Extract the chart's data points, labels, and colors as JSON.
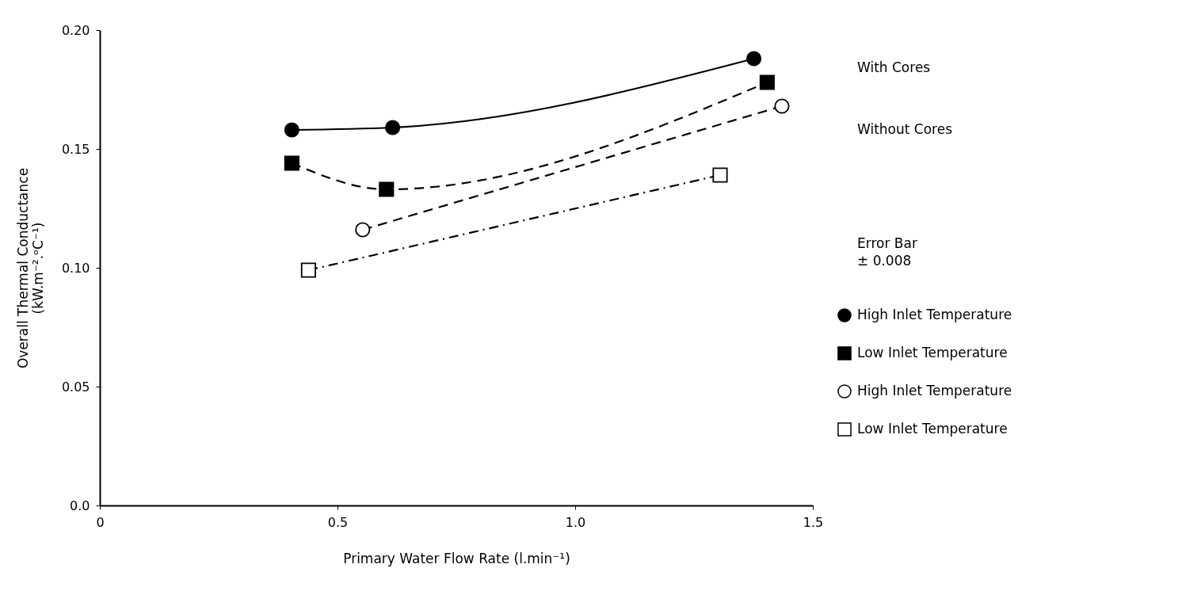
{
  "chart_data": {
    "type": "line",
    "xlabel": "Primary Water Flow Rate (l.min⁻¹)",
    "ylabel": [
      "Overall Thermal Conductance",
      "(kW.m⁻².ᵒC⁻¹)"
    ],
    "xlim": [
      0,
      1.5
    ],
    "xticks": [
      0,
      0.5,
      {
        "value": 1.0,
        "label": "1.0"
      },
      1.5
    ],
    "ylim": [
      0,
      0.2
    ],
    "yticks": [
      {
        "value": 0,
        "label": "0.0"
      },
      0.05,
      {
        "value": 0.1,
        "label": "0.10"
      },
      0.15,
      {
        "value": 0.2,
        "label": "0.20"
      }
    ],
    "grid": false,
    "legend": "right",
    "annotations": [
      "With Cores",
      "Without Cores",
      "Error Bar\n± 0.008"
    ],
    "series": [
      {
        "name": "High Inlet Temperature",
        "color": "#000000",
        "marker": "circle",
        "line_style": "solid",
        "x": [
          0.404,
          0.616,
          1.376
        ],
        "values": [
          0.158,
          0.159,
          0.188
        ]
      },
      {
        "name": "Low Inlet Temperature",
        "color": "#000000",
        "marker": "square",
        "line_style": "dashed",
        "x": [
          0.404,
          0.603,
          1.404
        ],
        "values": [
          0.144,
          0.133,
          0.178
        ]
      },
      {
        "name": "High Inlet Temperature",
        "color": "#000000",
        "marker": "circle",
        "colors": [
          "#ffffff",
          "#ffffff"
        ],
        "line_style": "dashed",
        "x": [
          0.553,
          1.435
        ],
        "values": [
          0.116,
          0.168
        ]
      },
      {
        "name": "Low Inlet Temperature",
        "color": "#000000",
        "marker": "square",
        "colors": [
          "#ffffff",
          "#ffffff"
        ],
        "line_style": "dashdot",
        "x": [
          0.439,
          1.305
        ],
        "values": [
          0.099,
          0.139
        ]
      }
    ]
  }
}
